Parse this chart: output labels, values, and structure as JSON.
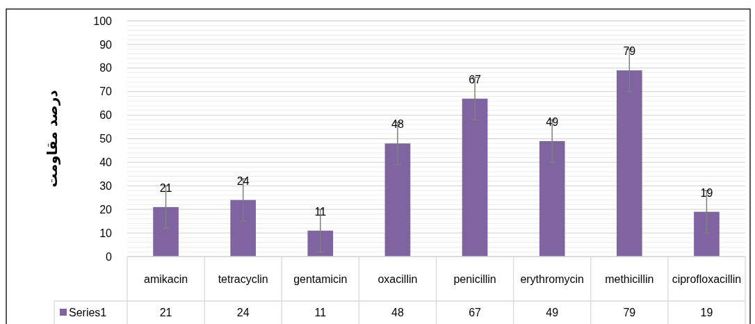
{
  "chart_data": {
    "type": "bar",
    "ylabel": "درصد مقاومت",
    "categories": [
      "amikacin",
      "tetracyclin",
      "gentamicin",
      "oxacillin",
      "penicillin",
      "erythromycin",
      "methicillin",
      "ciprofloxacillin"
    ],
    "series": [
      {
        "name": "Series1",
        "color": "#8064a2",
        "values": [
          21,
          24,
          11,
          48,
          67,
          49,
          79,
          19
        ],
        "errors": [
          9,
          9,
          9,
          9,
          9,
          9,
          9,
          9
        ],
        "value_labels": [
          "21",
          "24",
          "11",
          "48",
          "67",
          "49",
          "79",
          "19"
        ]
      }
    ],
    "ylim": [
      0,
      100
    ],
    "yticks": [
      0,
      {
        "value": 2,
        "label": null
      },
      {
        "value": 4,
        "label": null
      },
      {
        "value": 6,
        "label": null
      },
      {
        "value": 8,
        "label": null
      },
      10,
      {
        "value": 12,
        "label": null
      },
      {
        "value": 14,
        "label": null
      },
      {
        "value": 16,
        "label": null
      },
      {
        "value": 18,
        "label": null
      },
      20,
      {
        "value": 22,
        "label": null
      },
      {
        "value": 24,
        "label": null
      },
      {
        "value": 26,
        "label": null
      },
      {
        "value": 28,
        "label": null
      },
      30,
      {
        "value": 32,
        "label": null
      },
      {
        "value": 34,
        "label": null
      },
      {
        "value": 36,
        "label": null
      },
      {
        "value": 38,
        "label": null
      },
      40,
      {
        "value": 42,
        "label": null
      },
      {
        "value": 44,
        "label": null
      },
      {
        "value": 46,
        "label": null
      },
      {
        "value": 48,
        "label": null
      },
      50,
      {
        "value": 52,
        "label": null
      },
      {
        "value": 54,
        "label": null
      },
      {
        "value": 56,
        "label": null
      },
      {
        "value": 58,
        "label": null
      },
      60,
      {
        "value": 62,
        "label": null
      },
      {
        "value": 64,
        "label": null
      },
      {
        "value": 66,
        "label": null
      },
      {
        "value": 68,
        "label": null
      },
      70,
      {
        "value": 72,
        "label": null
      },
      {
        "value": 74,
        "label": null
      },
      {
        "value": 76,
        "label": null
      },
      {
        "value": 78,
        "label": null
      },
      80,
      {
        "value": 82,
        "label": null
      },
      {
        "value": 84,
        "label": null
      },
      {
        "value": 86,
        "label": null
      },
      {
        "value": 88,
        "label": null
      },
      90,
      {
        "value": 92,
        "label": null
      },
      {
        "value": 94,
        "label": null
      },
      {
        "value": 96,
        "label": null
      },
      {
        "value": 98,
        "label": null
      },
      100
    ],
    "grid": "y",
    "legend": "bottom",
    "annotations": [
      "21",
      "24",
      "11",
      "48",
      "67",
      "49",
      "79",
      "19"
    ]
  }
}
